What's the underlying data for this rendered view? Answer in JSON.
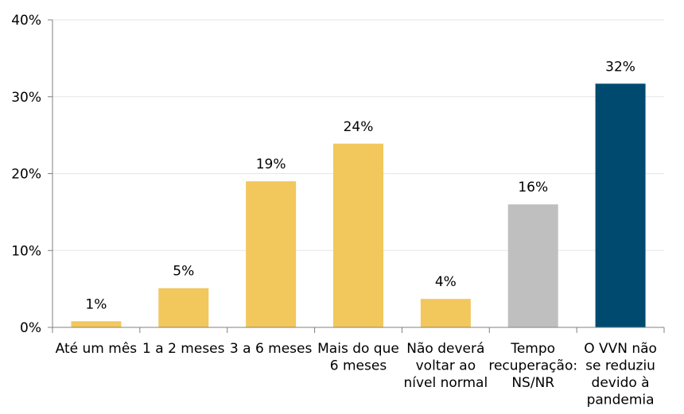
{
  "chart_data": {
    "type": "bar",
    "title": "",
    "xlabel": "",
    "ylabel": "",
    "ylim": [
      0,
      40
    ],
    "yticks": [
      0,
      10,
      20,
      30,
      40
    ],
    "ytick_labels": [
      "0%",
      "10%",
      "20%",
      "30%",
      "40%"
    ],
    "grid": "horizontal light gridlines",
    "legend": "none",
    "categories": [
      [
        "Até um mês"
      ],
      [
        "1 a 2 meses"
      ],
      [
        "3 a 6 meses"
      ],
      [
        "Mais do que",
        "6 meses"
      ],
      [
        "Não deverá",
        "voltar ao",
        "nível normal"
      ],
      [
        "Tempo",
        "recuperação:",
        "NS/NR"
      ],
      [
        "O VVN não",
        "se reduziu",
        "devido à",
        "pandemia"
      ]
    ],
    "values": [
      0.8,
      5.1,
      19.0,
      23.9,
      3.7,
      16.0,
      31.7
    ],
    "data_labels": [
      "1%",
      "5%",
      "19%",
      "24%",
      "4%",
      "16%",
      "32%"
    ],
    "bar_colors": [
      "#F2C75C",
      "#F2C75C",
      "#F2C75C",
      "#F2C75C",
      "#F2C75C",
      "#BFBFBF",
      "#004A70"
    ],
    "axis_color": "#808080",
    "grid_color": "#E6E6E6"
  }
}
